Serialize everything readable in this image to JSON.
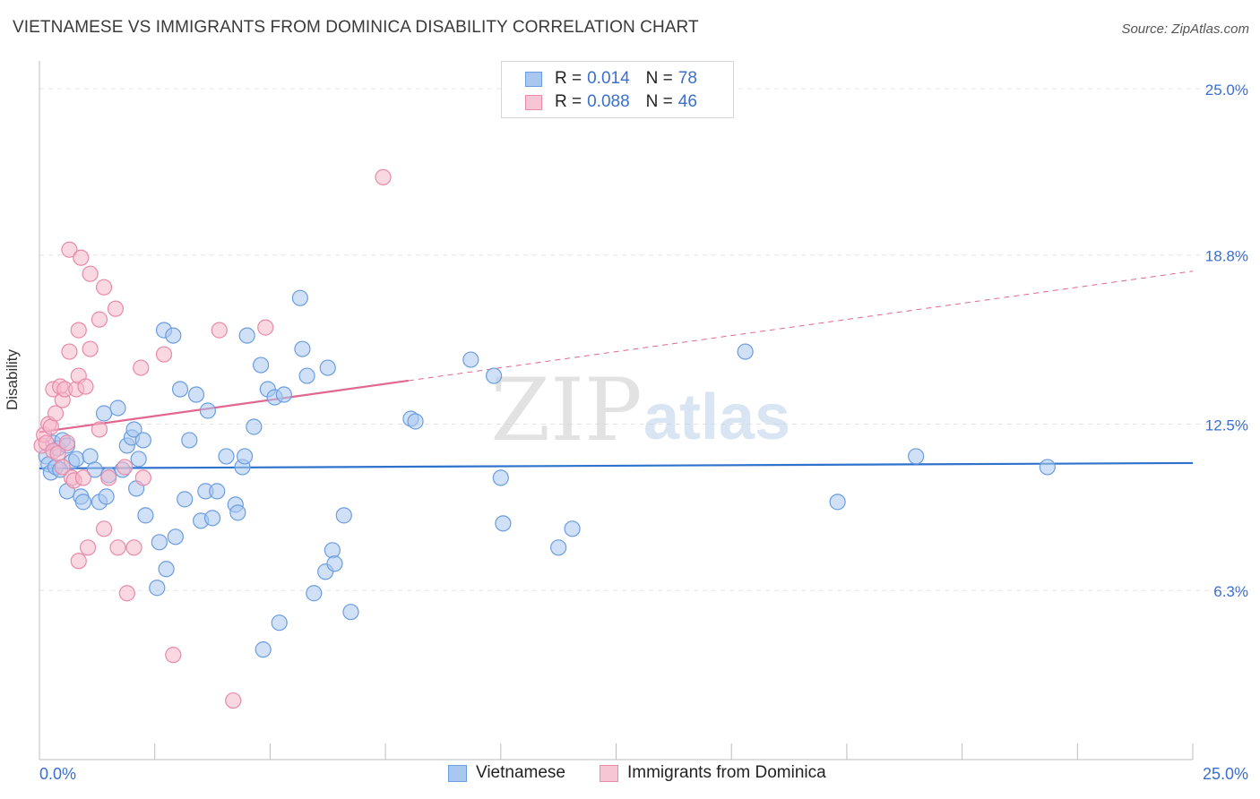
{
  "title": "VIETNAMESE VS IMMIGRANTS FROM DOMINICA DISABILITY CORRELATION CHART",
  "source": "Source: ZipAtlas.com",
  "watermark": {
    "zip": "ZIP",
    "atlas": "atlas"
  },
  "legend": {
    "series1": {
      "r_label": "R =",
      "r_value": "0.014",
      "n_label": "N =",
      "n_value": "78"
    },
    "series2": {
      "r_label": "R =",
      "r_value": "0.088",
      "n_label": "N =",
      "n_value": "46"
    }
  },
  "colors": {
    "blue_fill": "#a9c8f0",
    "blue_stroke": "#6b9de0",
    "blue_line": "#2f72cc",
    "pink_fill": "#f6b8cb",
    "pink_stroke": "#e98aa8",
    "pink_line": "#e0678f",
    "axis_text": "#3a6fcf",
    "grid": "#e4e4e4"
  },
  "chart_data": {
    "type": "scatter",
    "title": "VIETNAMESE VS IMMIGRANTS FROM DOMINICA DISABILITY CORRELATION CHART",
    "xlabel": "",
    "ylabel": "Disability",
    "xlim": [
      0,
      25
    ],
    "ylim": [
      0,
      25.9
    ],
    "x_tick_labels": [
      "0.0%",
      "25.0%"
    ],
    "y_ticks": [
      {
        "value": 6.3,
        "label": "6.3%"
      },
      {
        "value": 12.5,
        "label": "12.5%"
      },
      {
        "value": 18.8,
        "label": "18.8%"
      },
      {
        "value": 25.0,
        "label": "25.0%"
      }
    ],
    "legend_position": "bottom",
    "series": [
      {
        "name": "Vietnamese",
        "r": 0.014,
        "n": 78,
        "trend": {
          "x": [
            0,
            25
          ],
          "y": [
            10.85,
            11.05
          ],
          "dashed_from": null
        },
        "points": [
          [
            0.15,
            11.3
          ],
          [
            0.2,
            11.0
          ],
          [
            0.25,
            10.7
          ],
          [
            0.3,
            11.8
          ],
          [
            0.35,
            10.9
          ],
          [
            0.4,
            11.6
          ],
          [
            0.45,
            10.8
          ],
          [
            0.5,
            11.9
          ],
          [
            0.6,
            10.0
          ],
          [
            0.6,
            11.7
          ],
          [
            0.7,
            11.1
          ],
          [
            0.8,
            11.2
          ],
          [
            0.9,
            9.8
          ],
          [
            0.95,
            9.6
          ],
          [
            1.1,
            11.3
          ],
          [
            1.2,
            10.8
          ],
          [
            1.3,
            9.6
          ],
          [
            1.4,
            12.9
          ],
          [
            1.45,
            9.8
          ],
          [
            1.5,
            10.6
          ],
          [
            1.7,
            13.1
          ],
          [
            1.8,
            10.8
          ],
          [
            1.9,
            11.7
          ],
          [
            2.0,
            12.0
          ],
          [
            2.05,
            12.3
          ],
          [
            2.1,
            10.1
          ],
          [
            2.15,
            11.2
          ],
          [
            2.25,
            11.9
          ],
          [
            2.3,
            9.1
          ],
          [
            2.55,
            6.4
          ],
          [
            2.6,
            8.1
          ],
          [
            2.7,
            16.0
          ],
          [
            2.75,
            7.1
          ],
          [
            2.9,
            15.8
          ],
          [
            2.95,
            8.3
          ],
          [
            3.05,
            13.8
          ],
          [
            3.15,
            9.7
          ],
          [
            3.25,
            11.9
          ],
          [
            3.4,
            13.6
          ],
          [
            3.5,
            8.9
          ],
          [
            3.6,
            10.0
          ],
          [
            3.65,
            13.0
          ],
          [
            3.75,
            9.0
          ],
          [
            3.85,
            10.0
          ],
          [
            4.05,
            11.3
          ],
          [
            4.25,
            9.5
          ],
          [
            4.3,
            9.2
          ],
          [
            4.4,
            10.9
          ],
          [
            4.45,
            11.3
          ],
          [
            4.5,
            15.8
          ],
          [
            4.65,
            12.4
          ],
          [
            4.8,
            14.7
          ],
          [
            4.85,
            4.1
          ],
          [
            4.95,
            13.8
          ],
          [
            5.1,
            13.5
          ],
          [
            5.2,
            5.1
          ],
          [
            5.3,
            13.6
          ],
          [
            5.65,
            17.2
          ],
          [
            5.7,
            15.3
          ],
          [
            5.8,
            14.3
          ],
          [
            5.95,
            6.2
          ],
          [
            6.2,
            7.0
          ],
          [
            6.25,
            14.6
          ],
          [
            6.35,
            7.8
          ],
          [
            6.4,
            7.3
          ],
          [
            6.6,
            9.1
          ],
          [
            6.75,
            5.5
          ],
          [
            8.05,
            12.7
          ],
          [
            8.15,
            12.6
          ],
          [
            9.35,
            14.9
          ],
          [
            9.85,
            14.3
          ],
          [
            10.0,
            10.5
          ],
          [
            10.05,
            8.8
          ],
          [
            11.25,
            7.9
          ],
          [
            11.55,
            8.6
          ],
          [
            15.3,
            15.2
          ],
          [
            17.3,
            9.6
          ],
          [
            19.0,
            11.3
          ],
          [
            21.85,
            10.9
          ]
        ]
      },
      {
        "name": "Immigrants from Dominica",
        "r": 0.088,
        "n": 46,
        "trend": {
          "x": [
            0,
            25
          ],
          "y": [
            12.2,
            18.2
          ],
          "solid_until_x": 8.0
        },
        "points": [
          [
            0.05,
            11.7
          ],
          [
            0.1,
            12.1
          ],
          [
            0.15,
            11.8
          ],
          [
            0.2,
            12.5
          ],
          [
            0.25,
            12.4
          ],
          [
            0.3,
            11.5
          ],
          [
            0.3,
            13.8
          ],
          [
            0.35,
            12.9
          ],
          [
            0.4,
            11.4
          ],
          [
            0.45,
            13.9
          ],
          [
            0.5,
            10.9
          ],
          [
            0.5,
            13.4
          ],
          [
            0.55,
            13.8
          ],
          [
            0.6,
            11.8
          ],
          [
            0.65,
            15.2
          ],
          [
            0.65,
            19.0
          ],
          [
            0.7,
            10.5
          ],
          [
            0.75,
            10.4
          ],
          [
            0.8,
            13.8
          ],
          [
            0.85,
            14.3
          ],
          [
            0.85,
            16.0
          ],
          [
            0.85,
            7.4
          ],
          [
            0.9,
            18.7
          ],
          [
            0.95,
            10.5
          ],
          [
            1.0,
            13.9
          ],
          [
            1.05,
            7.9
          ],
          [
            1.1,
            15.3
          ],
          [
            1.1,
            18.1
          ],
          [
            1.3,
            12.3
          ],
          [
            1.3,
            16.4
          ],
          [
            1.4,
            8.6
          ],
          [
            1.4,
            17.6
          ],
          [
            1.5,
            10.5
          ],
          [
            1.65,
            16.8
          ],
          [
            1.7,
            7.9
          ],
          [
            1.85,
            10.9
          ],
          [
            1.9,
            6.2
          ],
          [
            2.05,
            7.9
          ],
          [
            2.2,
            14.6
          ],
          [
            2.25,
            10.5
          ],
          [
            2.7,
            15.1
          ],
          [
            2.9,
            3.9
          ],
          [
            3.9,
            16.0
          ],
          [
            4.2,
            2.2
          ],
          [
            4.9,
            16.1
          ],
          [
            7.45,
            21.7
          ]
        ]
      }
    ]
  },
  "bottom_legend": {
    "item1": "Vietnamese",
    "item2": "Immigrants from Dominica"
  }
}
